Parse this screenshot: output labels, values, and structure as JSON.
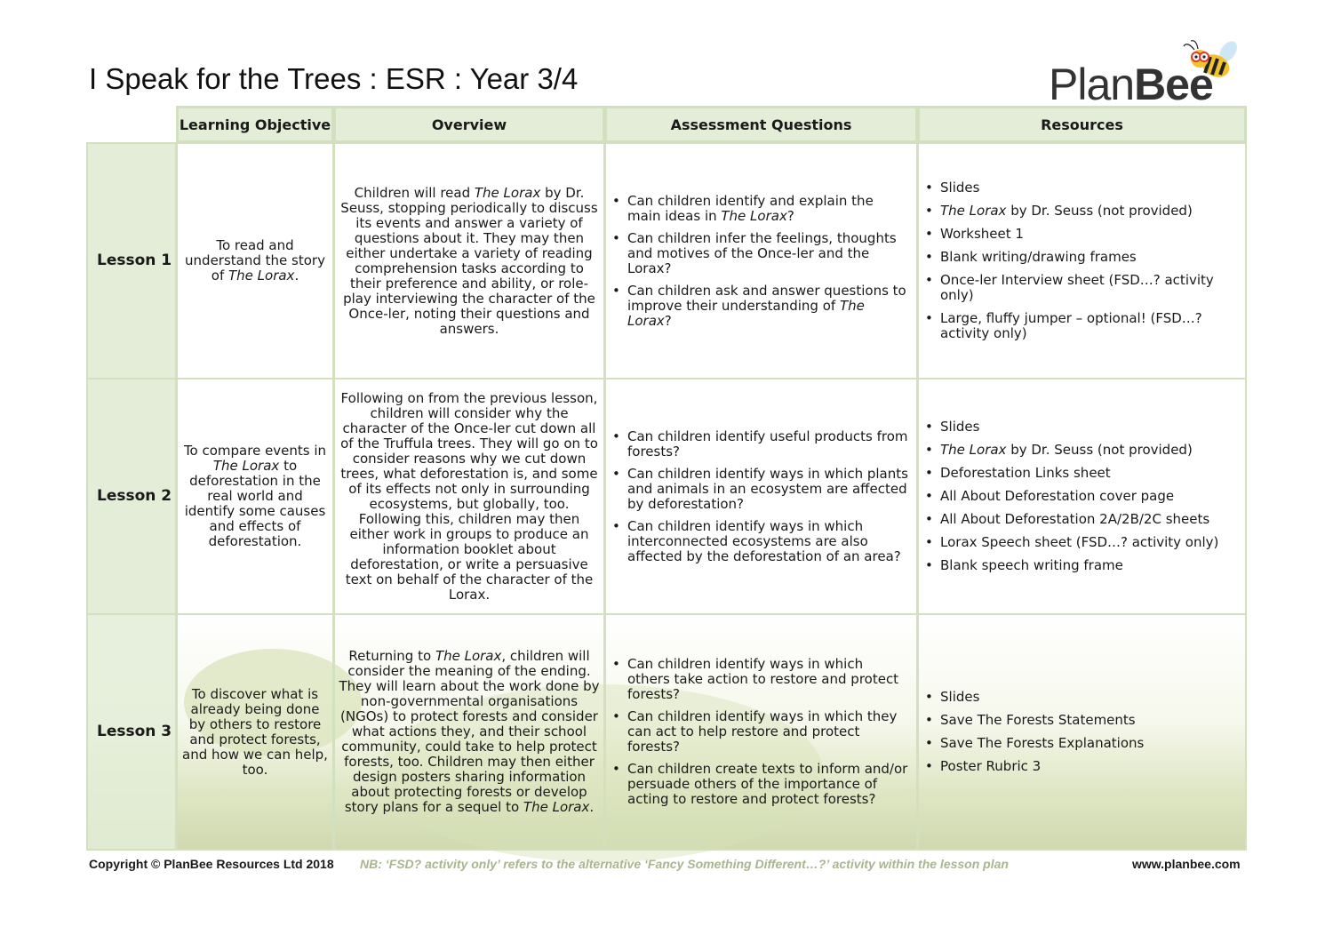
{
  "title": "I Speak for the Trees : ESR : Year 3/4",
  "logo": {
    "text_light": "Plan",
    "text_bold": "Bee"
  },
  "headers": [
    "Learning Objective",
    "Overview",
    "Assessment Questions",
    "Resources"
  ],
  "rows": [
    {
      "lesson": "Lesson 1",
      "objective": [
        "To read and understand the story of ",
        {
          "i": "The Lorax"
        },
        "."
      ],
      "overview": [
        "Children will read ",
        {
          "i": "The Lorax"
        },
        " by Dr. Seuss, stopping periodically to discuss its events and answer a variety of questions about it. They may then either undertake a variety of reading comprehension tasks according to their preference and ability, or role-play interviewing the character of the Once-ler, noting their questions and answers."
      ],
      "questions": [
        [
          "Can children identify and explain the main ideas in ",
          {
            "i": "The Lorax"
          },
          "?"
        ],
        [
          "Can children infer the feelings, thoughts and motives of the Once-ler and the Lorax?"
        ],
        [
          "Can children ask and answer questions to improve their understanding of ",
          {
            "i": "The Lorax"
          },
          "?"
        ]
      ],
      "resources": [
        [
          "Slides"
        ],
        [
          {
            "i": "The Lorax"
          },
          " by Dr. Seuss (not provided)"
        ],
        [
          "Worksheet 1"
        ],
        [
          "Blank writing/drawing frames"
        ],
        [
          "Once-ler Interview sheet (FSD…? activity only)"
        ],
        [
          "Large, fluffy jumper – optional! (FSD…? activity only)"
        ]
      ]
    },
    {
      "lesson": "Lesson 2",
      "objective": [
        "To compare events in ",
        {
          "i": "The Lorax"
        },
        " to deforestation in the real world and identify some causes and effects of deforestation."
      ],
      "overview": [
        "Following on from the previous lesson, children will consider why the character of the Once-ler cut down all of the Truffula trees. They will go on to consider reasons why we cut down trees, what deforestation is, and some of its effects not only in surrounding ecosystems, but globally, too. Following this, children may then either work in groups to produce an information booklet about deforestation, or write a persuasive text on behalf of the character of the Lorax."
      ],
      "questions": [
        [
          "Can children identify useful products from forests?"
        ],
        [
          "Can children identify ways in which plants and animals in an ecosystem are affected by deforestation?"
        ],
        [
          "Can children identify ways in which interconnected ecosystems are also affected by the deforestation of an area?"
        ]
      ],
      "resources": [
        [
          "Slides"
        ],
        [
          {
            "i": "The Lorax"
          },
          " by Dr. Seuss (not provided)"
        ],
        [
          "Deforestation Links sheet"
        ],
        [
          "All About Deforestation cover page"
        ],
        [
          "All About Deforestation 2A/2B/2C sheets"
        ],
        [
          "Lorax Speech sheet (FSD…? activity only)"
        ],
        [
          "Blank speech writing frame"
        ]
      ]
    },
    {
      "lesson": "Lesson 3",
      "objective": [
        "To discover what is already being done by others to restore and protect forests, and how we can help, too."
      ],
      "overview": [
        "Returning to ",
        {
          "i": "The Lorax"
        },
        ", children will consider the meaning of the ending. They will learn about the work done by non-governmental organisations (NGOs) to protect forests and consider what actions they, and their school community, could take to help protect forests, too. Children may then either design posters sharing information about protecting forests or develop story plans for a sequel to ",
        {
          "i": "The Lorax"
        },
        "."
      ],
      "questions": [
        [
          "Can children identify ways in which others take action to restore and protect forests?"
        ],
        [
          "Can children identify ways in which they can act to help restore and protect forests?"
        ],
        [
          "Can children create texts to inform and/or persuade others of the importance of acting to restore and protect forests?"
        ]
      ],
      "resources": [
        [
          "Slides"
        ],
        [
          "Save The Forests Statements"
        ],
        [
          "Save The Forests Explanations"
        ],
        [
          "Poster Rubric 3"
        ]
      ]
    }
  ],
  "footer": {
    "copyright": "Copyright © PlanBee Resources Ltd 2018",
    "note": "NB: ‘FSD? activity only’ refers to the alternative ‘Fancy Something Different…?’ activity within the lesson plan",
    "website": "www.planbee.com"
  },
  "colors": {
    "header_bg": "#e3edd7",
    "border": "#d3e0bf",
    "note": "#a8b58e"
  }
}
